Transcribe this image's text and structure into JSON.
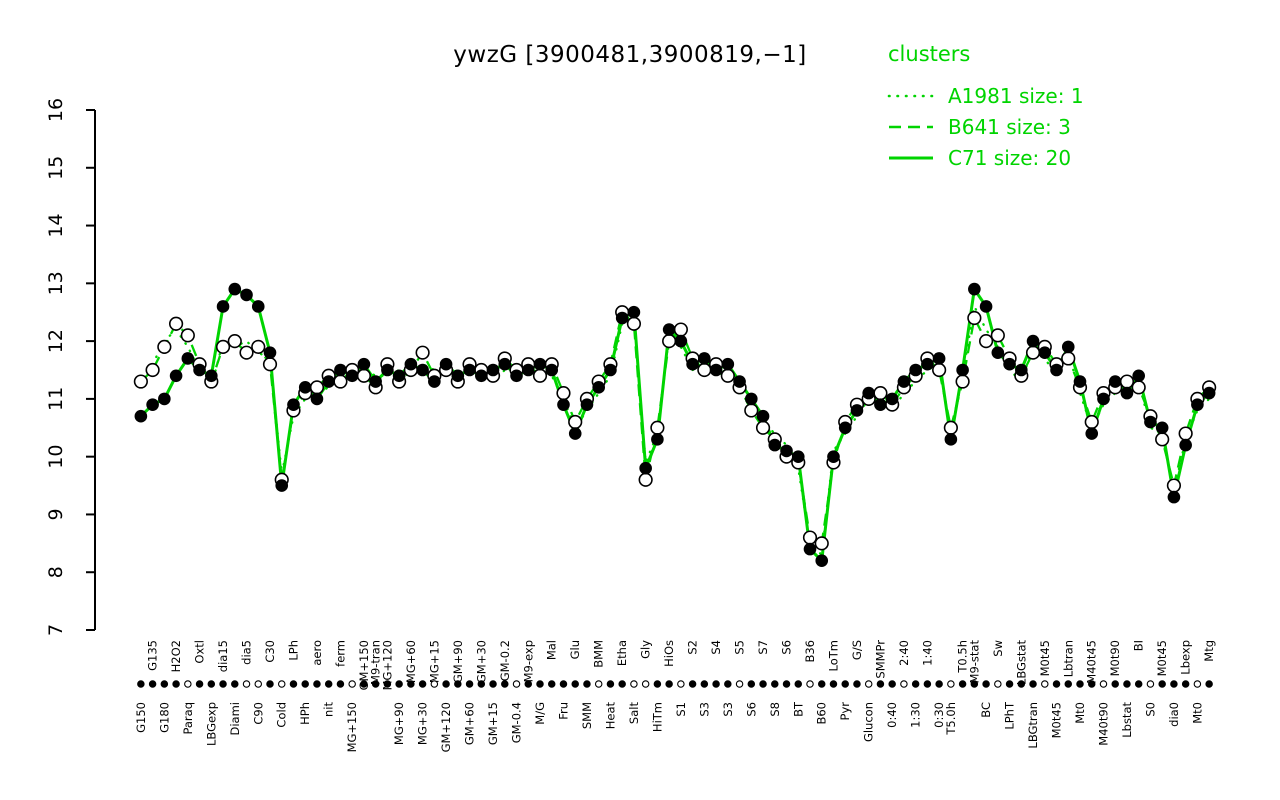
{
  "title": "ywzG [3900481,3900819,−1]",
  "legend": {
    "title": "clusters",
    "items": [
      {
        "label": "A1981 size: 1",
        "style": "dotted"
      },
      {
        "label": "B641 size: 3",
        "style": "dashed"
      },
      {
        "label": "C71 size: 20",
        "style": "solid"
      }
    ]
  },
  "colors": {
    "cluster_green": "#00d400",
    "point_fill": "#000000",
    "open_point_fill": "#ffffff",
    "axis": "#000000"
  },
  "chart_data": {
    "type": "line",
    "title": "ywzG [3900481,3900819,−1]",
    "ylabel": "",
    "xlabel": "",
    "ylim": [
      7,
      16
    ],
    "yticks": [
      7,
      8,
      9,
      10,
      11,
      12,
      13,
      14,
      15,
      16
    ],
    "grid": false,
    "legend_position": "top-right",
    "categories": [
      [
        "G150",
        "b",
        "f"
      ],
      [
        "G135",
        "t",
        "f"
      ],
      [
        "G180",
        "b",
        "f"
      ],
      [
        "H2O2",
        "t",
        "f"
      ],
      [
        "Paraq",
        "b",
        "o"
      ],
      [
        "Oxtl",
        "t",
        "f"
      ],
      [
        "LBGexp",
        "b",
        "f"
      ],
      [
        "dia15",
        "t",
        "f"
      ],
      [
        "Diami",
        "b",
        "f"
      ],
      [
        "dia5",
        "t",
        "o"
      ],
      [
        "C90",
        "b",
        "o"
      ],
      [
        "C30",
        "t",
        "f"
      ],
      [
        "Cold",
        "b",
        "o"
      ],
      [
        "LPh",
        "t",
        "f"
      ],
      [
        "HPh",
        "b",
        "f"
      ],
      [
        "aero",
        "t",
        "f"
      ],
      [
        "nit",
        "b",
        "f"
      ],
      [
        "ferm",
        "t",
        "f"
      ],
      [
        "MG+150",
        "b",
        "o"
      ],
      [
        "GM+150",
        "t",
        "f"
      ],
      [
        "M9-tran",
        "t",
        "f"
      ],
      [
        "MG+120",
        "t",
        "f"
      ],
      [
        "MG+90",
        "b",
        "f"
      ],
      [
        "MG+60",
        "t",
        "f"
      ],
      [
        "MG+30",
        "b",
        "f"
      ],
      [
        "MG+15",
        "t",
        "o"
      ],
      [
        "GM+120",
        "b",
        "f"
      ],
      [
        "GM+90",
        "t",
        "f"
      ],
      [
        "GM+60",
        "b",
        "f"
      ],
      [
        "GM+30",
        "t",
        "f"
      ],
      [
        "GM+15",
        "b",
        "f"
      ],
      [
        "GM-0.2",
        "t",
        "f"
      ],
      [
        "GM-0.4",
        "b",
        "o"
      ],
      [
        "M9-exp",
        "t",
        "f"
      ],
      [
        "M/G",
        "b",
        "f"
      ],
      [
        "Mal",
        "t",
        "f"
      ],
      [
        "Fru",
        "b",
        "f"
      ],
      [
        "Glu",
        "t",
        "f"
      ],
      [
        "SMM",
        "b",
        "f"
      ],
      [
        "BMM",
        "t",
        "o"
      ],
      [
        "Heat",
        "b",
        "f"
      ],
      [
        "Etha",
        "t",
        "f"
      ],
      [
        "Salt",
        "b",
        "o"
      ],
      [
        "Gly",
        "t",
        "o"
      ],
      [
        "HiTm",
        "b",
        "f"
      ],
      [
        "HiOs",
        "t",
        "f"
      ],
      [
        "S1",
        "b",
        "o"
      ],
      [
        "S2",
        "t",
        "f"
      ],
      [
        "S3",
        "b",
        "f"
      ],
      [
        "S4",
        "t",
        "f"
      ],
      [
        "S3",
        "b",
        "f"
      ],
      [
        "S5",
        "t",
        "o"
      ],
      [
        "S6",
        "b",
        "f"
      ],
      [
        "S7",
        "t",
        "f"
      ],
      [
        "S8",
        "b",
        "f"
      ],
      [
        "S6",
        "t",
        "f"
      ],
      [
        "BT",
        "b",
        "f"
      ],
      [
        "B36",
        "t",
        "o"
      ],
      [
        "B60",
        "b",
        "f"
      ],
      [
        "LoTm",
        "t",
        "f"
      ],
      [
        "Pyr",
        "b",
        "f"
      ],
      [
        "G/S",
        "t",
        "f"
      ],
      [
        "Glucon",
        "b",
        "o"
      ],
      [
        "SMMPr",
        "t",
        "f"
      ],
      [
        "0:40",
        "b",
        "f"
      ],
      [
        "2:40",
        "t",
        "o"
      ],
      [
        "1:30",
        "b",
        "f"
      ],
      [
        "1:40",
        "t",
        "f"
      ],
      [
        "0:30",
        "b",
        "f"
      ],
      [
        "T5.0h",
        "b",
        "o"
      ],
      [
        "T0.5h",
        "t",
        "f"
      ],
      [
        "M9-stat",
        "t",
        "f"
      ],
      [
        "BC",
        "b",
        "f"
      ],
      [
        "Sw",
        "t",
        "o"
      ],
      [
        "LPhT",
        "b",
        "f"
      ],
      [
        "LBGstat",
        "t",
        "f"
      ],
      [
        "LBGtran",
        "b",
        "f"
      ],
      [
        "M0t45",
        "t",
        "o"
      ],
      [
        "M0t45",
        "b",
        "f"
      ],
      [
        "Lbtran",
        "t",
        "f"
      ],
      [
        "Mt0",
        "b",
        "f"
      ],
      [
        "M40t45",
        "t",
        "f"
      ],
      [
        "M40t90",
        "b",
        "o"
      ],
      [
        "M0t90",
        "t",
        "f"
      ],
      [
        "Lbstat",
        "b",
        "f"
      ],
      [
        "BI",
        "t",
        "f"
      ],
      [
        "S0",
        "b",
        "o"
      ],
      [
        "M0t45",
        "t",
        "f"
      ],
      [
        "dia0",
        "b",
        "f"
      ],
      [
        "Lbexp",
        "t",
        "f"
      ],
      [
        "Mt0",
        "b",
        "o"
      ],
      [
        "Mtg",
        "t",
        "f"
      ]
    ],
    "series": [
      {
        "name": "A1981 size: 1",
        "cluster": "A1981",
        "size": 1,
        "style": "dotted",
        "marker": "none",
        "values": [
          11.2,
          11.6,
          12.0,
          12.2,
          11.9,
          11.5,
          11.2,
          12.0,
          11.9,
          12.0,
          11.8,
          11.7,
          9.7,
          10.7,
          11.0,
          11.1,
          11.2,
          11.4,
          11.3,
          11.5,
          11.4,
          11.4,
          11.5,
          11.4,
          11.6,
          11.5,
          11.4,
          11.5,
          11.4,
          11.6,
          11.3,
          11.5,
          11.6,
          11.4,
          11.5,
          11.4,
          11.0,
          10.5,
          10.8,
          11.1,
          11.4,
          12.3,
          12.4,
          9.9,
          10.4,
          12.1,
          11.9,
          11.5,
          11.6,
          11.4,
          11.5,
          11.1,
          10.9,
          10.6,
          10.4,
          10.2,
          9.8,
          8.5,
          8.3,
          10.1,
          10.4,
          10.7,
          11.0,
          11.0,
          10.8,
          11.1,
          11.3,
          11.5,
          11.6,
          10.4,
          11.4,
          12.6,
          12.2,
          11.9,
          11.5,
          11.3,
          11.9,
          11.7,
          11.4,
          11.8,
          11.1,
          10.5,
          10.9,
          11.1,
          11.2,
          11.3,
          10.5,
          10.4,
          9.4,
          10.3,
          10.8,
          11.0
        ]
      },
      {
        "name": "B641 size: 3",
        "cluster": "B641",
        "size": 3,
        "style": "dashed",
        "marker": "open-circle",
        "values": [
          11.3,
          11.5,
          11.9,
          12.3,
          12.1,
          11.6,
          11.3,
          11.9,
          12.0,
          11.8,
          11.9,
          11.6,
          9.6,
          10.8,
          11.1,
          11.2,
          11.4,
          11.3,
          11.5,
          11.4,
          11.2,
          11.6,
          11.3,
          11.5,
          11.8,
          11.4,
          11.5,
          11.3,
          11.6,
          11.5,
          11.4,
          11.7,
          11.5,
          11.6,
          11.4,
          11.6,
          11.1,
          10.6,
          11.0,
          11.3,
          11.6,
          12.5,
          12.3,
          9.6,
          10.5,
          12.0,
          12.2,
          11.7,
          11.5,
          11.6,
          11.4,
          11.2,
          10.8,
          10.5,
          10.3,
          10.0,
          9.9,
          8.6,
          8.5,
          9.9,
          10.6,
          10.9,
          11.0,
          11.1,
          10.9,
          11.2,
          11.4,
          11.7,
          11.5,
          10.5,
          11.3,
          12.4,
          12.0,
          12.1,
          11.7,
          11.4,
          11.8,
          11.9,
          11.6,
          11.7,
          11.2,
          10.6,
          11.1,
          11.2,
          11.3,
          11.2,
          10.7,
          10.3,
          9.5,
          10.4,
          11.0,
          11.2
        ]
      },
      {
        "name": "C71 size: 20",
        "cluster": "C71",
        "size": 20,
        "style": "solid",
        "marker": "filled-circle",
        "values": [
          10.7,
          10.9,
          11.0,
          11.4,
          11.7,
          11.5,
          11.4,
          12.6,
          12.9,
          12.8,
          12.6,
          11.8,
          9.5,
          10.9,
          11.2,
          11.0,
          11.3,
          11.5,
          11.4,
          11.6,
          11.3,
          11.5,
          11.4,
          11.6,
          11.5,
          11.3,
          11.6,
          11.4,
          11.5,
          11.4,
          11.5,
          11.6,
          11.4,
          11.5,
          11.6,
          11.5,
          10.9,
          10.4,
          10.9,
          11.2,
          11.5,
          12.4,
          12.5,
          9.8,
          10.3,
          12.2,
          12.0,
          11.6,
          11.7,
          11.5,
          11.6,
          11.3,
          11.0,
          10.7,
          10.2,
          10.1,
          10.0,
          8.4,
          8.2,
          10.0,
          10.5,
          10.8,
          11.1,
          10.9,
          11.0,
          11.3,
          11.5,
          11.6,
          11.7,
          10.3,
          11.5,
          12.9,
          12.6,
          11.8,
          11.6,
          11.5,
          12.0,
          11.8,
          11.5,
          11.9,
          11.3,
          10.4,
          11.0,
          11.3,
          11.1,
          11.4,
          10.6,
          10.5,
          9.3,
          10.2,
          10.9,
          11.1
        ]
      }
    ]
  }
}
